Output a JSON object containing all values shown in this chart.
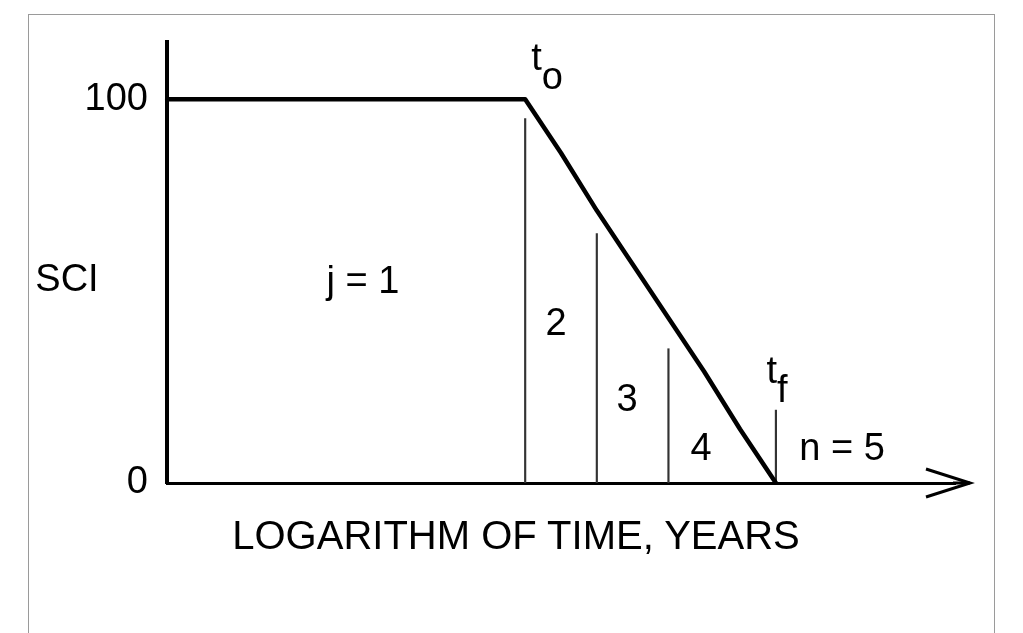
{
  "chart_data": {
    "type": "line",
    "xlabel": "LOGARITHM OF TIME, YEARS",
    "ylabel": "SCI",
    "categories": [
      null,
      null,
      null,
      null,
      null,
      null,
      null,
      null,
      null,
      null,
      null,
      null,
      null,
      null,
      null,
      null,
      null,
      null,
      null,
      null,
      null,
      null,
      null
    ],
    "ylim": [
      0,
      115
    ],
    "yticks": [
      0,
      100
    ],
    "tick_labels": "y",
    "marker": "none",
    "line_style": "solid",
    "series": [
      {
        "color": "#000000",
        "values": [
          100,
          100,
          100,
          100,
          100,
          100,
          100,
          100,
          100,
          100,
          100,
          86,
          71,
          57,
          43,
          29,
          14,
          0,
          null,
          null,
          null,
          null,
          null
        ]
      },
      {
        "type": "bar",
        "color": "#333333",
        "values": [
          null,
          null,
          null,
          null,
          null,
          null,
          null,
          null,
          null,
          null,
          95,
          null,
          65,
          null,
          35,
          null,
          null,
          19,
          null,
          null,
          null,
          null,
          null
        ]
      }
    ],
    "annotations": [
      "t$_{o}$",
      "j = 1",
      "2",
      "3",
      "4",
      "t$_{f}$",
      "n = 5"
    ]
  }
}
